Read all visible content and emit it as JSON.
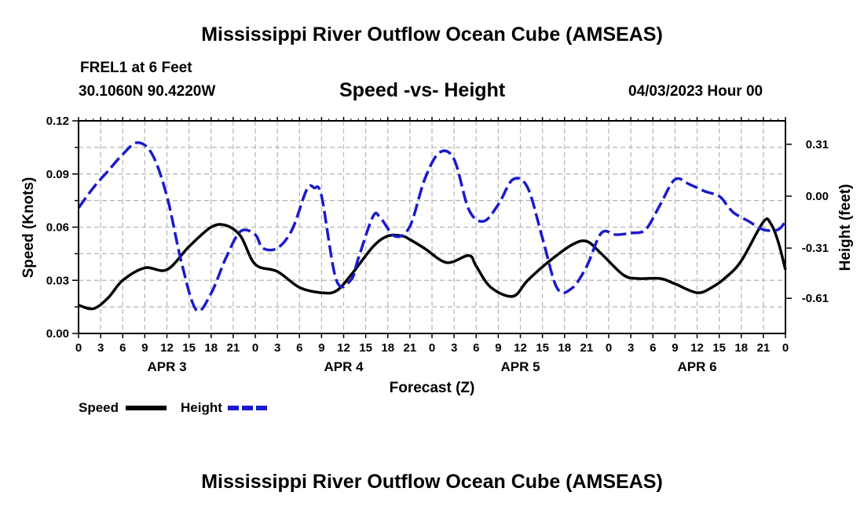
{
  "page": {
    "title_top": "Mississippi River Outflow Ocean Cube (AMSEAS)",
    "title_bottom": "Mississippi River Outflow Ocean Cube (AMSEAS)",
    "station_line1": "FREL1 at 6 Feet",
    "station_line2": "30.1060N  90.4220W",
    "subtitle": "Speed -vs- Height",
    "datetime": "04/03/2023 Hour 00"
  },
  "chart_data": {
    "type": "line",
    "title": "Speed -vs- Height",
    "xlabel": "Forecast (Z)",
    "ylabel": "Speed (Knots)",
    "y2label": "Height (feet)",
    "x_range_hours": [
      0,
      96
    ],
    "ylim": [
      0,
      0.12
    ],
    "y2lim": [
      -0.82,
      0.45
    ],
    "y_ticks": [
      0.0,
      0.03,
      0.06,
      0.09,
      0.12
    ],
    "y_tick_labels": [
      "0.00",
      "0.03",
      "0.06",
      "0.09",
      "0.12"
    ],
    "y2_ticks": [
      -0.61,
      -0.31,
      0.0,
      0.31
    ],
    "y2_tick_labels": [
      "-0.61",
      "-0.31",
      "0.00",
      "0.31"
    ],
    "x_tick_labels": [
      "0",
      "3",
      "6",
      "9",
      "12",
      "15",
      "18",
      "21",
      "0",
      "3",
      "6",
      "9",
      "12",
      "15",
      "18",
      "21",
      "0",
      "3",
      "6",
      "9",
      "12",
      "15",
      "18",
      "21",
      "0",
      "3",
      "6",
      "9",
      "12",
      "15",
      "18",
      "21",
      "0"
    ],
    "day_labels": [
      {
        "label": "APR 3",
        "hour": 12
      },
      {
        "label": "APR 4",
        "hour": 36
      },
      {
        "label": "APR 5",
        "hour": 60
      },
      {
        "label": "APR 6",
        "hour": 84
      }
    ],
    "grid": true,
    "legend_position": "bottom-left",
    "series": [
      {
        "name": "Speed",
        "axis": "left",
        "color": "#000000",
        "style": "solid",
        "x": [
          0,
          2,
          4,
          6,
          9,
          12,
          15,
          18,
          20,
          22,
          24,
          27,
          30,
          33,
          35,
          37,
          40,
          42,
          44,
          45,
          47,
          50,
          53,
          54,
          56,
          59,
          61,
          64,
          67,
          69,
          71,
          74,
          76,
          79,
          81,
          84,
          86,
          88,
          90,
          93,
          94,
          95,
          96
        ],
        "values": [
          0.016,
          0.014,
          0.02,
          0.03,
          0.037,
          0.036,
          0.049,
          0.06,
          0.061,
          0.055,
          0.039,
          0.035,
          0.026,
          0.023,
          0.024,
          0.033,
          0.049,
          0.055,
          0.055,
          0.053,
          0.048,
          0.04,
          0.044,
          0.038,
          0.026,
          0.021,
          0.03,
          0.041,
          0.05,
          0.052,
          0.045,
          0.033,
          0.031,
          0.031,
          0.028,
          0.023,
          0.026,
          0.032,
          0.041,
          0.063,
          0.062,
          0.052,
          0.036
        ]
      },
      {
        "name": "Height",
        "axis": "right",
        "color": "#1a1acc",
        "style": "dashed",
        "x": [
          0,
          2,
          4,
          6,
          8,
          10,
          12,
          14,
          16,
          18,
          20,
          22,
          24,
          25,
          27,
          29,
          31,
          32,
          33,
          35,
          37,
          38,
          40,
          41,
          43,
          45,
          47,
          49,
          51,
          53,
          55,
          57,
          59,
          61,
          63,
          65,
          67,
          69,
          71,
          73,
          75,
          77,
          79,
          81,
          83,
          85,
          87,
          88,
          89,
          91,
          93,
          95,
          96
        ],
        "values": [
          -0.07,
          0.05,
          0.15,
          0.25,
          0.32,
          0.25,
          0.0,
          -0.4,
          -0.68,
          -0.58,
          -0.37,
          -0.21,
          -0.23,
          -0.31,
          -0.31,
          -0.2,
          0.04,
          0.05,
          0.0,
          -0.5,
          -0.5,
          -0.37,
          -0.12,
          -0.13,
          -0.24,
          -0.18,
          0.1,
          0.26,
          0.22,
          -0.08,
          -0.15,
          -0.05,
          0.1,
          0.05,
          -0.25,
          -0.55,
          -0.55,
          -0.42,
          -0.22,
          -0.23,
          -0.22,
          -0.2,
          -0.05,
          0.1,
          0.07,
          0.03,
          0.0,
          -0.05,
          -0.1,
          -0.15,
          -0.2,
          -0.2,
          -0.15
        ]
      }
    ]
  }
}
